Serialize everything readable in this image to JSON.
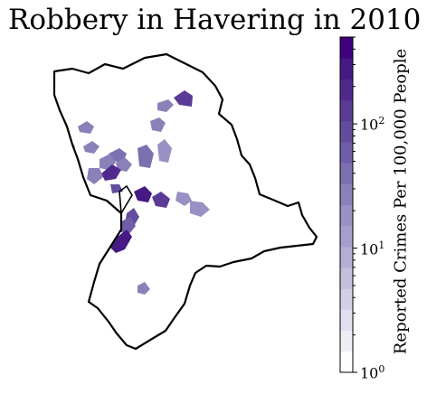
{
  "title": "Robbery in Havering in 2010",
  "colorbar": {
    "label": "Reported Crimes Per 100,000 People",
    "scale": "log",
    "range": [
      1,
      500
    ],
    "ticks": [
      {
        "base": "10",
        "exp": "0",
        "value": 1
      },
      {
        "base": "10",
        "exp": "1",
        "value": 10
      },
      {
        "base": "10",
        "exp": "2",
        "value": 100
      }
    ],
    "colors": [
      "#ffffff",
      "#efedf5",
      "#e2e0ef",
      "#d3d0e6",
      "#c4c0de",
      "#b4afd4",
      "#a49fcb",
      "#9891c3",
      "#8a81b9",
      "#7c70b0",
      "#6f5ea7",
      "#644c9d",
      "#5a3b95",
      "#4f2a8c",
      "#461a84",
      "#3f007d"
    ]
  },
  "map": {
    "outline_color": "#000000",
    "regions": [
      {
        "name": "area-1",
        "value": 110
      },
      {
        "name": "area-2",
        "value": 25
      },
      {
        "name": "area-3",
        "value": 30
      },
      {
        "name": "area-4",
        "value": 28
      },
      {
        "name": "area-5",
        "value": 24
      },
      {
        "name": "area-6",
        "value": 35
      },
      {
        "name": "area-7",
        "value": 30
      },
      {
        "name": "area-8",
        "value": 45
      },
      {
        "name": "area-9",
        "value": 22
      },
      {
        "name": "area-10",
        "value": 30
      },
      {
        "name": "area-11",
        "value": 200
      },
      {
        "name": "area-12",
        "value": 28
      },
      {
        "name": "area-13",
        "value": 90
      },
      {
        "name": "area-14",
        "value": 20
      },
      {
        "name": "area-15",
        "value": 22
      },
      {
        "name": "area-16",
        "value": 300
      },
      {
        "name": "area-17",
        "value": 150
      },
      {
        "name": "area-18",
        "value": 80
      },
      {
        "name": "area-19",
        "value": 60
      },
      {
        "name": "area-20",
        "value": 30
      },
      {
        "name": "area-21",
        "value": 260
      },
      {
        "name": "area-22",
        "value": 35
      }
    ]
  }
}
